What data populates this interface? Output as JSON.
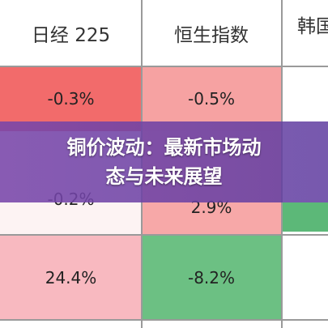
{
  "table": {
    "columns": [
      "日经 225",
      "恒生指数",
      "韩国"
    ],
    "rows": [
      [
        "-0.3%",
        "-0.5%"
      ],
      [
        "-0.2%",
        "2.9%"
      ],
      [
        "24.4%",
        "-8.2%"
      ]
    ]
  },
  "banner": {
    "title_line1": "铜价波动：最新市场动",
    "title_line2": "态与未来展望"
  }
}
